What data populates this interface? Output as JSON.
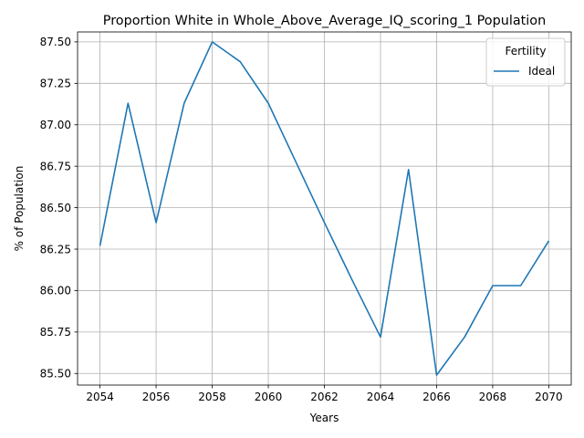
{
  "chart_data": {
    "type": "line",
    "title": "Proportion White in Whole_Above_Average_IQ_scoring_1 Population",
    "xlabel": "Years",
    "ylabel": "% of Population",
    "x": [
      2054,
      2055,
      2056,
      2057,
      2058,
      2059,
      2060,
      2061,
      2062,
      2063,
      2064,
      2065,
      2066,
      2067,
      2068,
      2069,
      2070
    ],
    "series": [
      {
        "name": "Ideal",
        "color": "#1f77b4",
        "values": [
          86.27,
          87.13,
          86.41,
          87.13,
          87.5,
          87.38,
          87.13,
          86.77,
          86.41,
          86.06,
          85.72,
          86.73,
          85.49,
          85.72,
          86.03,
          86.03,
          86.3
        ]
      }
    ],
    "xlim": [
      2053.2,
      2070.8
    ],
    "ylim": [
      85.43,
      87.56
    ],
    "xticks": [
      "2054",
      "2056",
      "2058",
      "2060",
      "2062",
      "2064",
      "2066",
      "2068",
      "2070"
    ],
    "yticks": [
      "85.50",
      "85.75",
      "86.00",
      "86.25",
      "86.50",
      "86.75",
      "87.00",
      "87.25",
      "87.50"
    ],
    "grid": true,
    "legend": {
      "title": "Fertility",
      "position": "top-right"
    }
  }
}
